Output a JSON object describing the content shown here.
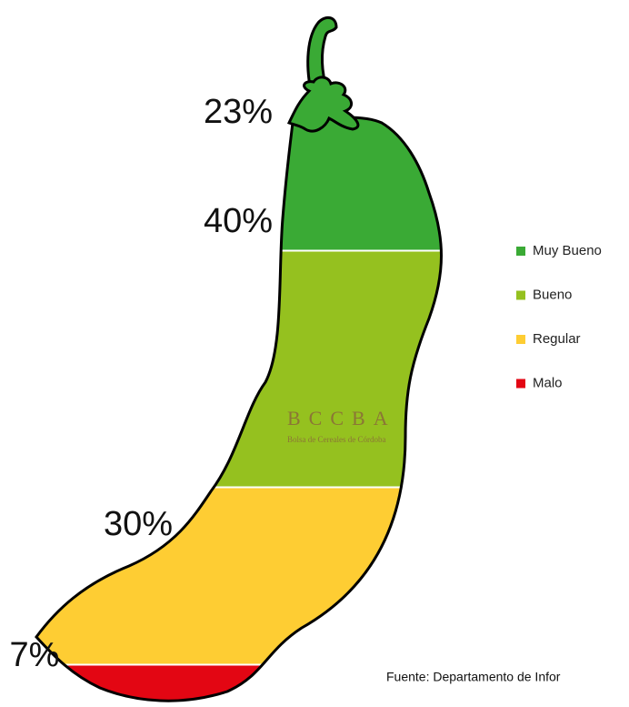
{
  "chart_data": {
    "type": "pictorial_stack",
    "categories": [
      "Muy Bueno",
      "Bueno",
      "Regular",
      "Malo"
    ],
    "values": [
      23,
      40,
      30,
      7
    ],
    "value_labels": [
      "23%",
      "40%",
      "30%",
      "7%"
    ],
    "colors": [
      "#3aaa35",
      "#95c11f",
      "#fecd33",
      "#e30613"
    ],
    "watermark": {
      "title": "BCCBA",
      "subtitle": "Bolsa de Cereales de Córdoba"
    },
    "source": "Fuente: Departamento de Infor"
  }
}
